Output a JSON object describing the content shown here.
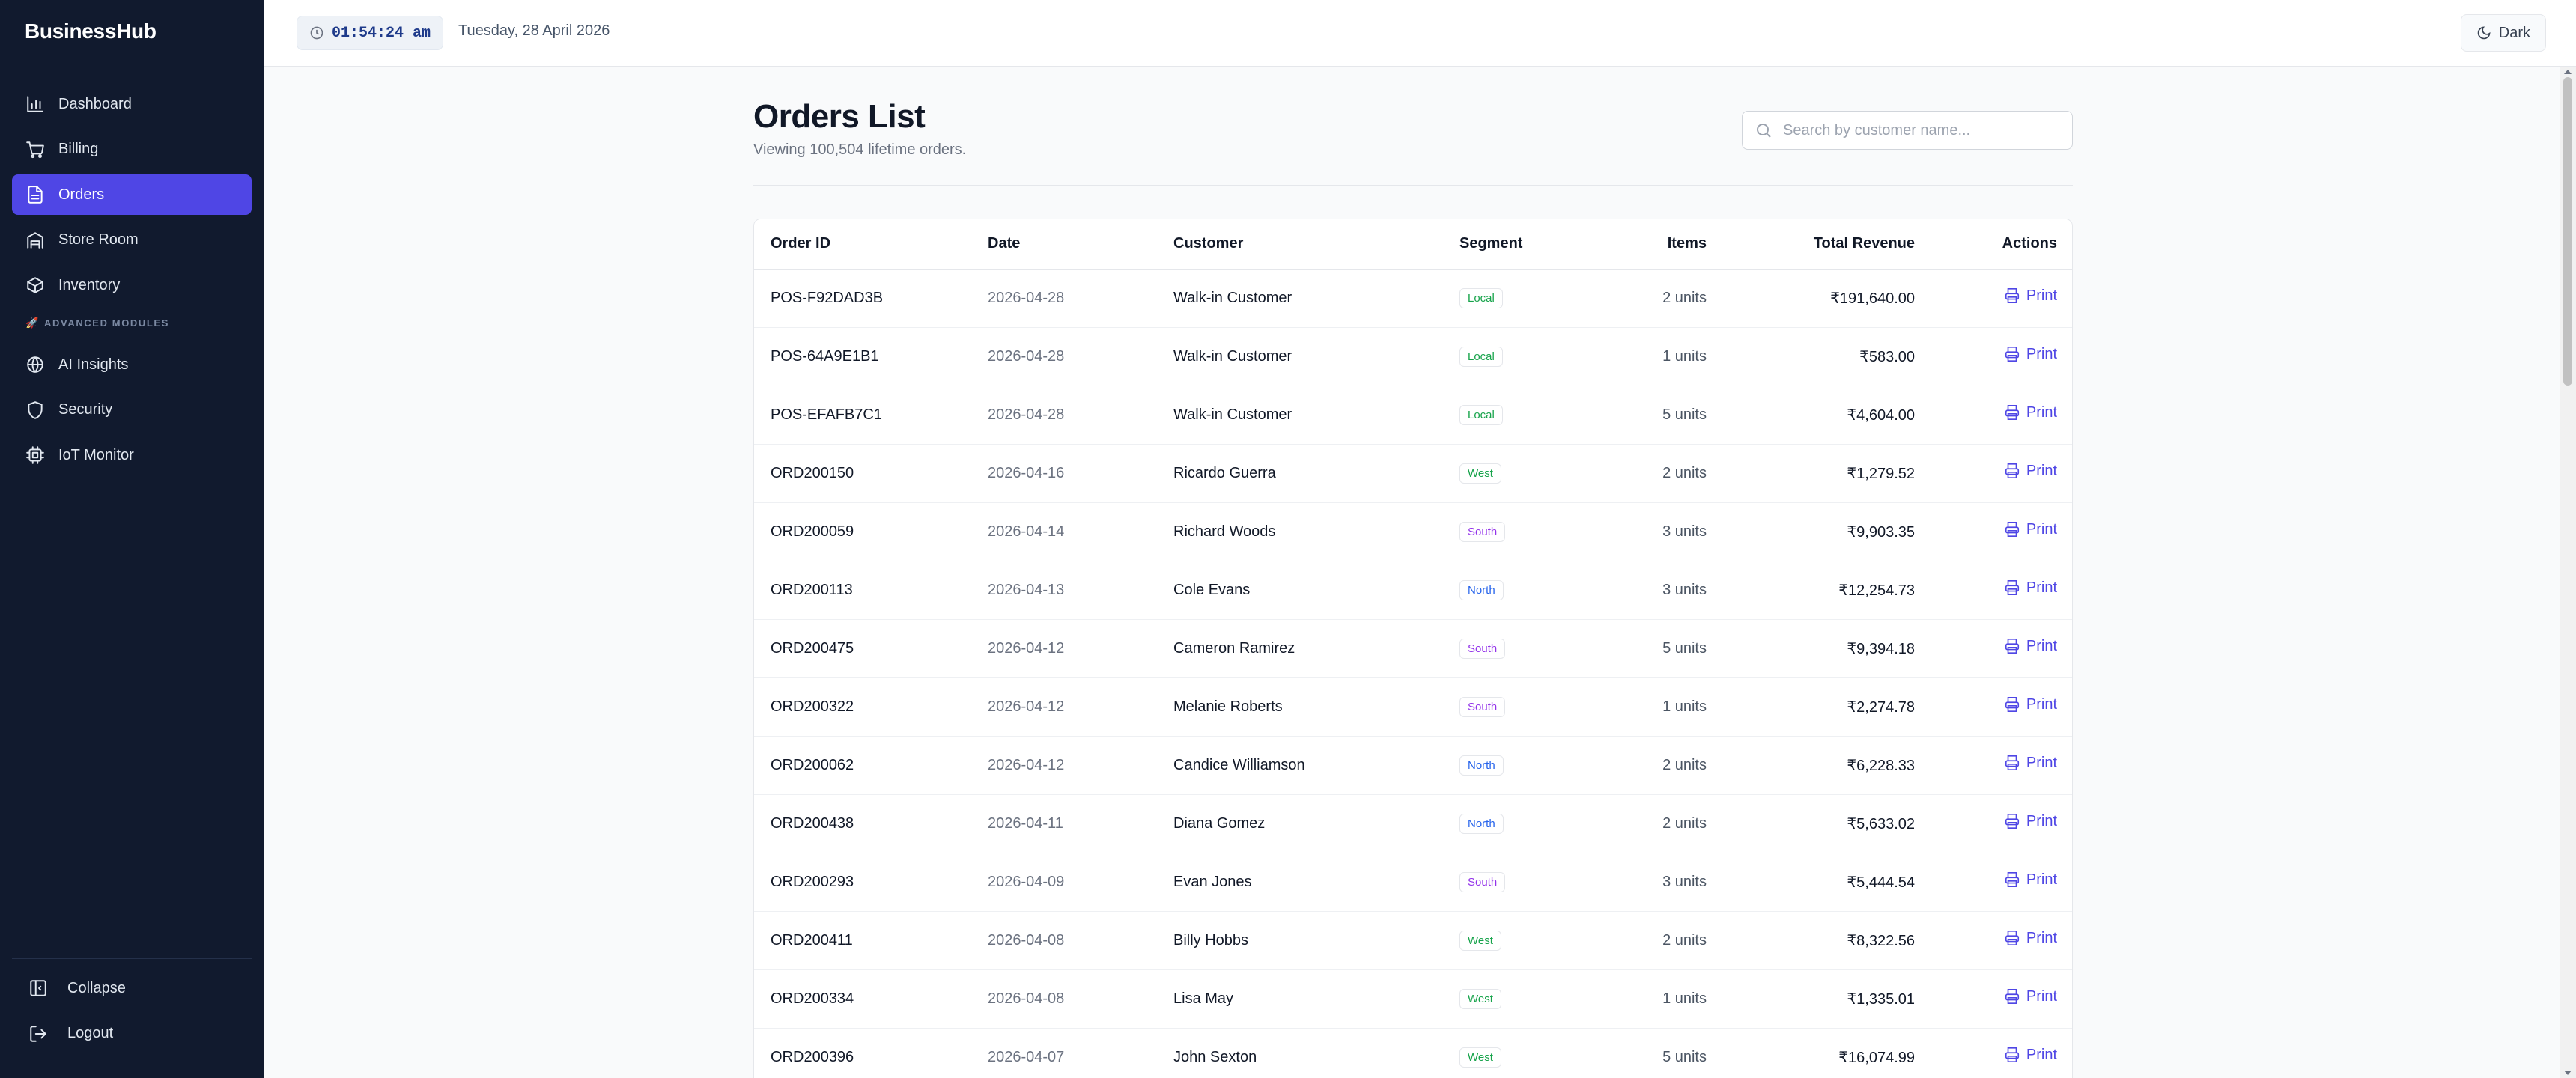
{
  "brand": "BusinessHub",
  "sidebar": {
    "items": [
      {
        "label": "Dashboard",
        "icon": "bar-chart-icon",
        "active": false
      },
      {
        "label": "Billing",
        "icon": "cart-icon",
        "active": false
      },
      {
        "label": "Orders",
        "icon": "file-icon",
        "active": true
      },
      {
        "label": "Store Room",
        "icon": "warehouse-icon",
        "active": false
      },
      {
        "label": "Inventory",
        "icon": "package-icon",
        "active": false
      }
    ],
    "section_label": "ADVANCED MODULES",
    "advanced_items": [
      {
        "label": "AI Insights",
        "icon": "globe-icon"
      },
      {
        "label": "Security",
        "icon": "shield-icon"
      },
      {
        "label": "IoT Monitor",
        "icon": "cpu-icon"
      }
    ],
    "bottom": {
      "collapse": "Collapse",
      "logout": "Logout"
    }
  },
  "topbar": {
    "clock": "01:54:24 am",
    "date": "Tuesday, 28 April 2026",
    "theme_button": "Dark"
  },
  "page": {
    "title": "Orders List",
    "subtitle": "Viewing 100,504 lifetime orders.",
    "search_placeholder": "Search by customer name..."
  },
  "table": {
    "headers": {
      "order_id": "Order ID",
      "date": "Date",
      "customer": "Customer",
      "segment": "Segment",
      "items": "Items",
      "revenue": "Total Revenue",
      "actions": "Actions"
    },
    "print_label": "Print",
    "segment_colors": {
      "Local": "#16a34a",
      "West": "#16a34a",
      "South": "#9333ea",
      "North": "#2563eb"
    },
    "rows": [
      {
        "id": "POS-F92DAD3B",
        "date": "2026-04-28",
        "customer": "Walk-in Customer",
        "segment": "Local",
        "items": "2 units",
        "revenue": "₹191,640.00"
      },
      {
        "id": "POS-64A9E1B1",
        "date": "2026-04-28",
        "customer": "Walk-in Customer",
        "segment": "Local",
        "items": "1 units",
        "revenue": "₹583.00"
      },
      {
        "id": "POS-EFAFB7C1",
        "date": "2026-04-28",
        "customer": "Walk-in Customer",
        "segment": "Local",
        "items": "5 units",
        "revenue": "₹4,604.00"
      },
      {
        "id": "ORD200150",
        "date": "2026-04-16",
        "customer": "Ricardo Guerra",
        "segment": "West",
        "items": "2 units",
        "revenue": "₹1,279.52"
      },
      {
        "id": "ORD200059",
        "date": "2026-04-14",
        "customer": "Richard Woods",
        "segment": "South",
        "items": "3 units",
        "revenue": "₹9,903.35"
      },
      {
        "id": "ORD200113",
        "date": "2026-04-13",
        "customer": "Cole Evans",
        "segment": "North",
        "items": "3 units",
        "revenue": "₹12,254.73"
      },
      {
        "id": "ORD200475",
        "date": "2026-04-12",
        "customer": "Cameron Ramirez",
        "segment": "South",
        "items": "5 units",
        "revenue": "₹9,394.18"
      },
      {
        "id": "ORD200322",
        "date": "2026-04-12",
        "customer": "Melanie Roberts",
        "segment": "South",
        "items": "1 units",
        "revenue": "₹2,274.78"
      },
      {
        "id": "ORD200062",
        "date": "2026-04-12",
        "customer": "Candice Williamson",
        "segment": "North",
        "items": "2 units",
        "revenue": "₹6,228.33"
      },
      {
        "id": "ORD200438",
        "date": "2026-04-11",
        "customer": "Diana Gomez",
        "segment": "North",
        "items": "2 units",
        "revenue": "₹5,633.02"
      },
      {
        "id": "ORD200293",
        "date": "2026-04-09",
        "customer": "Evan Jones",
        "segment": "South",
        "items": "3 units",
        "revenue": "₹5,444.54"
      },
      {
        "id": "ORD200411",
        "date": "2026-04-08",
        "customer": "Billy Hobbs",
        "segment": "West",
        "items": "2 units",
        "revenue": "₹8,322.56"
      },
      {
        "id": "ORD200334",
        "date": "2026-04-08",
        "customer": "Lisa May",
        "segment": "West",
        "items": "1 units",
        "revenue": "₹1,335.01"
      },
      {
        "id": "ORD200396",
        "date": "2026-04-07",
        "customer": "John Sexton",
        "segment": "West",
        "items": "5 units",
        "revenue": "₹16,074.99"
      }
    ]
  }
}
